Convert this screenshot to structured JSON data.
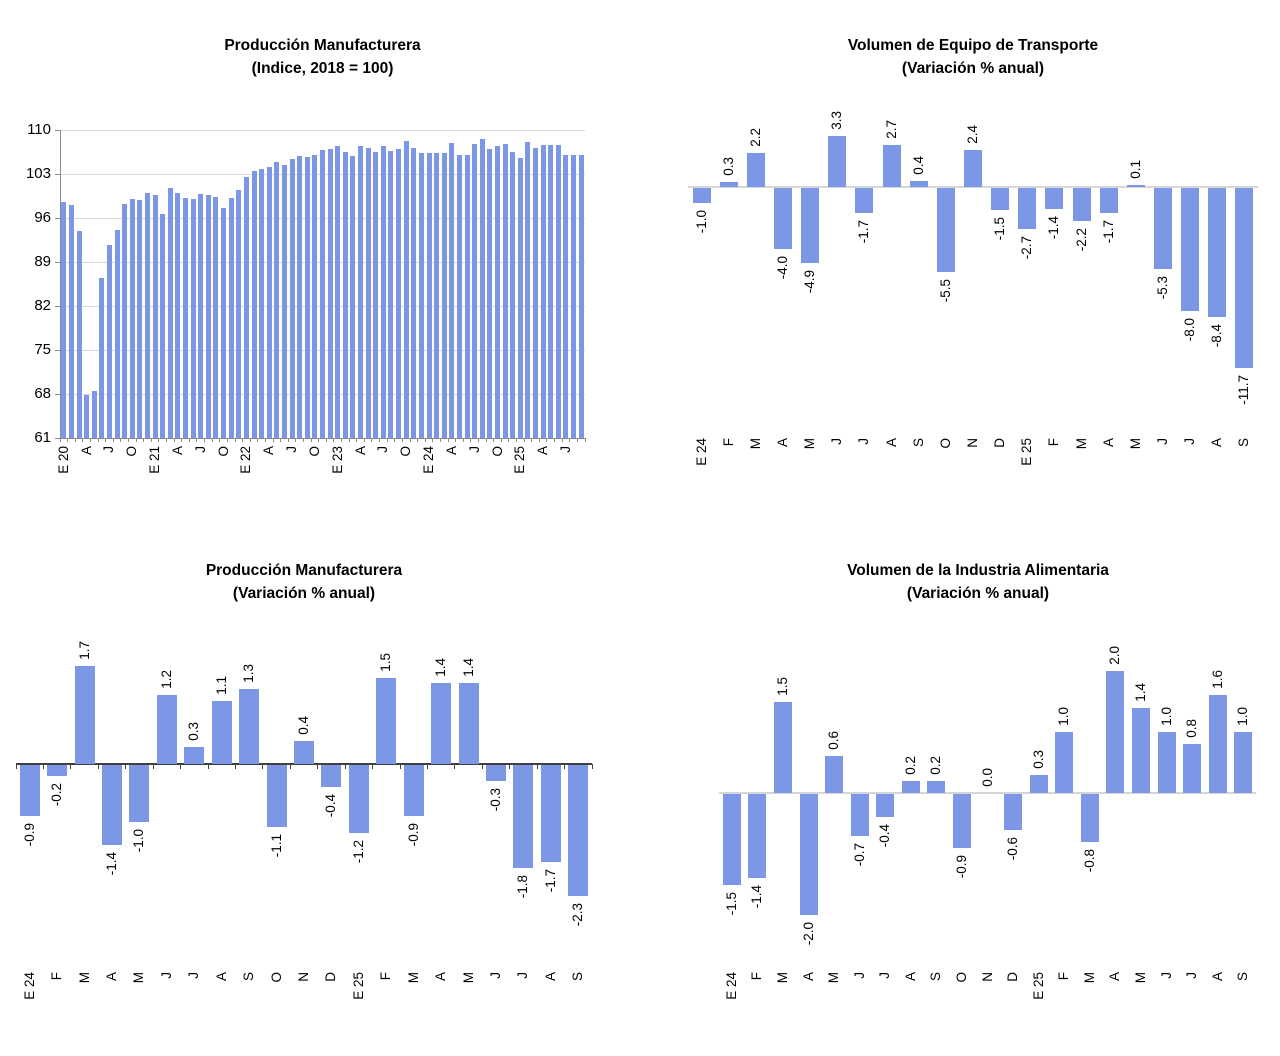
{
  "colors": {
    "bar": "#7C97E6",
    "grid": "#D9D9D9",
    "axis_gray": "#8C8C8C",
    "axis_light": "#D6D6D6",
    "axis_dark": "#404040",
    "text": "#000000",
    "background": "#FFFFFF"
  },
  "chart_data": [
    {
      "type": "bar",
      "title": "Producción Manufacturera",
      "subtitle": "(Indice, 2018 = 100)",
      "ylim": [
        61,
        110
      ],
      "yticks": [
        61,
        68,
        75,
        82,
        89,
        96,
        103,
        110
      ],
      "grid": true,
      "legend": false,
      "data_labels": false,
      "categories": [
        "E 20",
        "",
        "",
        "A",
        "",
        "",
        "J",
        "",
        "",
        "O",
        "",
        "",
        "E 21",
        "",
        "",
        "A",
        "",
        "",
        "J",
        "",
        "",
        "O",
        "",
        "",
        "E 22",
        "",
        "",
        "A",
        "",
        "",
        "J",
        "",
        "",
        "O",
        "",
        "",
        "E 23",
        "",
        "",
        "A",
        "",
        "",
        "J",
        "",
        "",
        "O",
        "",
        "",
        "E 24",
        "",
        "",
        "A",
        "",
        "",
        "J",
        "",
        "",
        "O",
        "",
        "",
        "E 25",
        "",
        "",
        "A",
        "",
        "",
        "J",
        "",
        ""
      ],
      "values": [
        98.6,
        98.1,
        93.9,
        67.8,
        68.4,
        86.4,
        91.7,
        94.1,
        98.3,
        99.1,
        98.9,
        100.0,
        99.7,
        96.6,
        100.7,
        100.0,
        99.2,
        99.0,
        99.8,
        99.7,
        99.4,
        97.6,
        99.2,
        100.4,
        102.6,
        103.5,
        103.8,
        104.1,
        104.9,
        104.5,
        105.4,
        105.8,
        105.7,
        106.1,
        106.8,
        107.0,
        107.5,
        106.5,
        105.9,
        107.5,
        107.1,
        106.5,
        107.5,
        106.6,
        107.0,
        108.2,
        107.1,
        106.4,
        106.4,
        106.3,
        106.4,
        107.9,
        106.0,
        106.1,
        107.7,
        108.6,
        106.9,
        107.4,
        107.7,
        106.5,
        105.5,
        108.1,
        107.2,
        107.6,
        107.6,
        107.6,
        106.0,
        106.1,
        106.1
      ]
    },
    {
      "type": "bar",
      "title": "Volumen de Equipo de Transporte",
      "subtitle": "(Variación % anual)",
      "grid": false,
      "legend": false,
      "data_labels": true,
      "categories": [
        "E 24",
        "F",
        "M",
        "A",
        "M",
        "J",
        "J",
        "A",
        "S",
        "O",
        "N",
        "D",
        "E 25",
        "F",
        "M",
        "A",
        "M",
        "J",
        "J",
        "A",
        "S"
      ],
      "values": [
        -1.0,
        0.3,
        2.2,
        -4.0,
        -4.9,
        3.3,
        -1.7,
        2.7,
        0.4,
        -5.5,
        2.4,
        -1.5,
        -2.7,
        -1.4,
        -2.2,
        -1.7,
        0.1,
        -5.3,
        -8.0,
        -8.4,
        -11.7
      ]
    },
    {
      "type": "bar",
      "title": "Producción Manufacturera",
      "subtitle": "(Variación % anual)",
      "grid": false,
      "legend": false,
      "data_labels": true,
      "categories": [
        "E 24",
        "F",
        "M",
        "A",
        "M",
        "J",
        "J",
        "A",
        "S",
        "O",
        "N",
        "D",
        "E 25",
        "F",
        "M",
        "A",
        "M",
        "J",
        "J",
        "A",
        "S"
      ],
      "values": [
        -0.9,
        -0.2,
        1.7,
        -1.4,
        -1.0,
        1.2,
        0.3,
        1.1,
        1.3,
        -1.1,
        0.4,
        -0.4,
        -1.2,
        1.5,
        -0.9,
        1.4,
        1.4,
        -0.3,
        -1.8,
        -1.7,
        -2.3
      ]
    },
    {
      "type": "bar",
      "title": "Volumen de la Industria Alimentaria",
      "subtitle": "(Variación % anual)",
      "grid": false,
      "legend": false,
      "data_labels": true,
      "categories": [
        "E 24",
        "F",
        "M",
        "A",
        "M",
        "J",
        "J",
        "A",
        "S",
        "O",
        "N",
        "D",
        "E 25",
        "F",
        "M",
        "A",
        "M",
        "J",
        "J",
        "A",
        "S"
      ],
      "values": [
        -1.5,
        -1.4,
        1.5,
        -2.0,
        0.6,
        -0.7,
        -0.4,
        0.2,
        0.2,
        -0.9,
        0.0,
        -0.6,
        0.3,
        1.0,
        -0.8,
        2.0,
        1.4,
        1.0,
        0.8,
        1.6,
        1.0
      ]
    }
  ]
}
